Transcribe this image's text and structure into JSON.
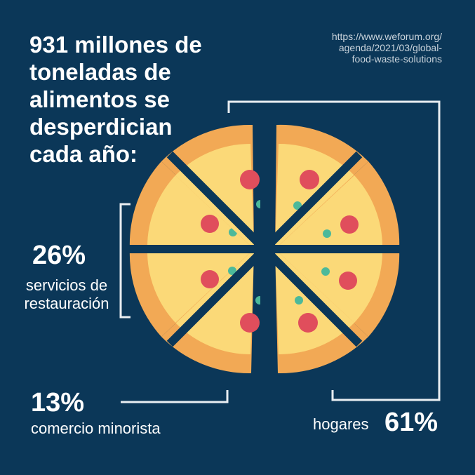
{
  "title_lines": [
    "931 millones de",
    "toneladas de",
    "alimentos se",
    "desperdician",
    "cada año:"
  ],
  "source_lines": [
    "https://www.weforum.org/",
    "agenda/2021/03/global-",
    "food-waste-solutions"
  ],
  "segments": {
    "restauracion": {
      "percent": "26%",
      "label_lines": [
        "servicios de",
        "restauración"
      ]
    },
    "minorista": {
      "percent": "13%",
      "label": "comercio minorista"
    },
    "hogares": {
      "percent": "61%",
      "label": "hogares"
    }
  },
  "illustration": {
    "slices": 8,
    "colors": {
      "background": "#0b3758",
      "crust": "#f2a955",
      "cheese": "#fbd978",
      "pepperoni": "#e04e5c",
      "olive": "#4cb99a",
      "bracket": "#e9eef2"
    }
  }
}
